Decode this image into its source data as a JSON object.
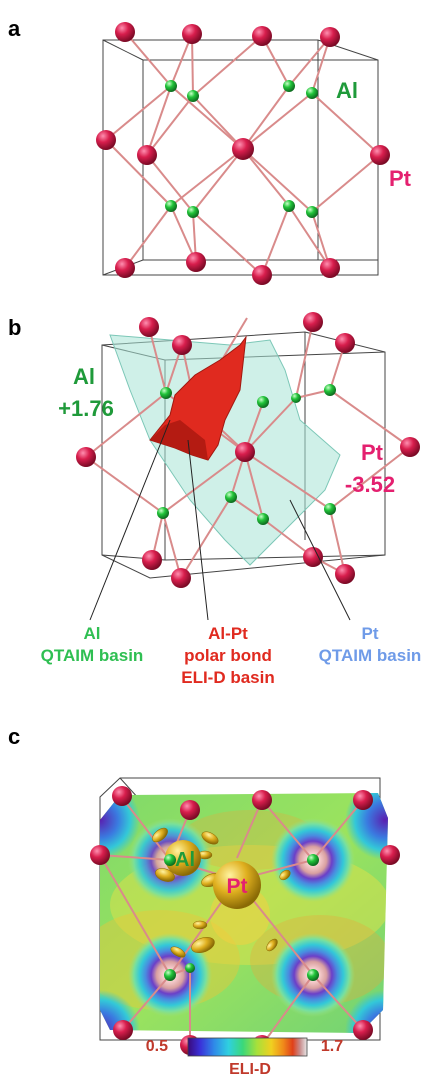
{
  "panels": {
    "a": {
      "letter": "a",
      "labels": {
        "al": "Al",
        "pt": "Pt"
      }
    },
    "b": {
      "letter": "b",
      "labels": {
        "al_charge_title": "Al",
        "al_charge_value": "+1.76",
        "pt_charge_title": "Pt",
        "pt_charge_value": "-3.52"
      },
      "callouts": {
        "al_basin": [
          "Al",
          "QTAIM basin"
        ],
        "alpt_bond": [
          "Al-Pt",
          "polar bond",
          "ELI-D basin"
        ],
        "pt_basin": [
          "Pt",
          "QTAIM basin"
        ]
      }
    },
    "c": {
      "letter": "c",
      "labels": {
        "al": "Al",
        "pt": "Pt"
      }
    }
  },
  "colorbar": {
    "min_label": "0.5",
    "max_label": "1.7",
    "title": "ELI-D"
  },
  "colors": {
    "pt_atom": "#d81e4d",
    "al_atom": "#22c43a",
    "bond": "#d98b8b",
    "al_text": "#1f9a3a",
    "pt_text": "#e4206f",
    "eli_basin": "#e02a1f",
    "qtaim_basin": "#a8e3d6",
    "pt_basin_text": "#6f9be8",
    "al_basin_text": "#2fbf52",
    "colorbar_label": "#c0392b"
  }
}
